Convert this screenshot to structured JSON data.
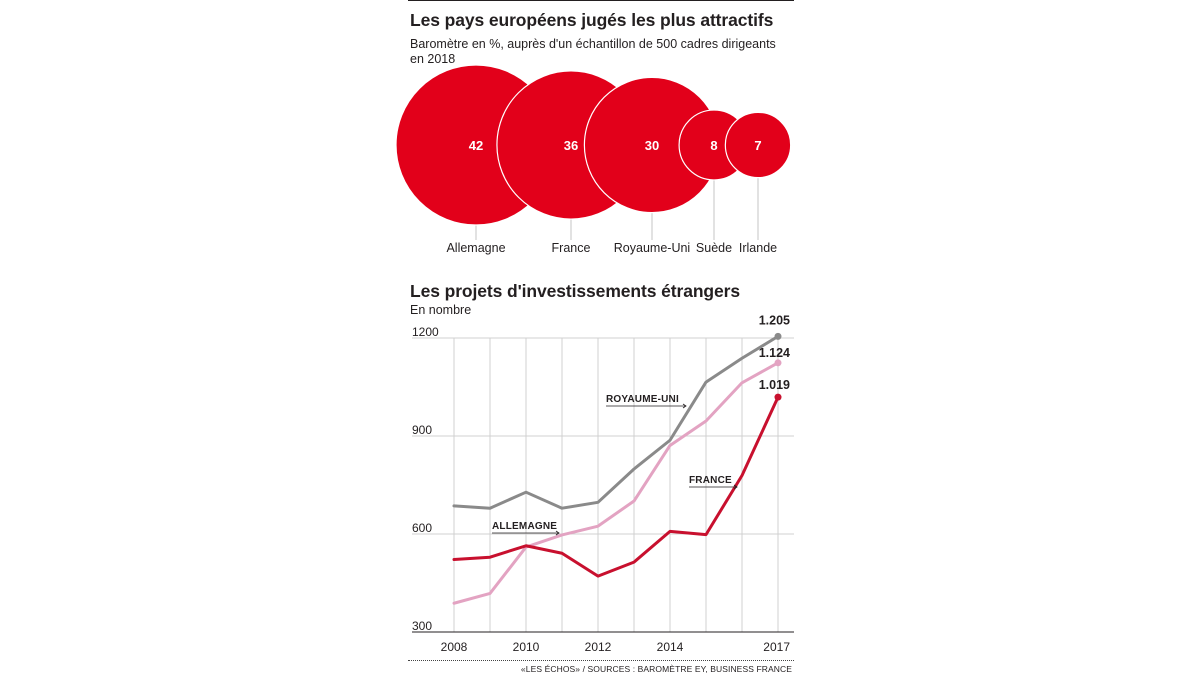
{
  "bubble_chart": {
    "title": "Les pays européens jugés les plus attractifs",
    "subtitle": "Baromètre en %, auprès d'un échantillon de 500 cadres dirigeants en 2018"
  },
  "line_chart": {
    "title": "Les projets d'investissements étrangers",
    "subtitle": "En nombre"
  },
  "source": "«LES ÉCHOS» / SOURCES : BAROMÈTRE EY, BUSINESS FRANCE",
  "colors": {
    "accent_red": "#e2001a",
    "dark_red": "#c8102e",
    "grey": "#8a8a8a",
    "pink": "#e3a3c2"
  },
  "chart_data": [
    {
      "type": "bubble",
      "categories": [
        "Allemagne",
        "France",
        "Royaume-Uni",
        "Suède",
        "Irlande"
      ],
      "values": [
        42,
        36,
        30,
        8,
        7
      ],
      "value_labels": [
        "42",
        "36",
        "30",
        "8",
        "7"
      ]
    },
    {
      "type": "line",
      "x": [
        2008,
        2009,
        2010,
        2011,
        2012,
        2013,
        2014,
        2015,
        2016,
        2017
      ],
      "x_tick_labels": [
        "2008",
        "2010",
        "2012",
        "2014",
        "2017"
      ],
      "x_tick_values": [
        2008,
        2010,
        2012,
        2014,
        2017
      ],
      "y_tick_labels": [
        "300",
        "600",
        "900",
        "1200"
      ],
      "y_tick_values": [
        300,
        600,
        900,
        1200
      ],
      "ylim": [
        300,
        1200
      ],
      "grid": true,
      "series": [
        {
          "name": "ROYAUME-UNI",
          "color": "#8a8a8a",
          "values": [
            686,
            679,
            728,
            679,
            697,
            799,
            887,
            1065,
            1138,
            1205
          ],
          "end_label": "1.205"
        },
        {
          "name": "ALLEMAGNE",
          "color": "#e3a3c2",
          "values": [
            388,
            418,
            560,
            597,
            624,
            701,
            871,
            946,
            1063,
            1124
          ],
          "end_label": "1.124"
        },
        {
          "name": "FRANCE",
          "color": "#c8102e",
          "values": [
            522,
            529,
            564,
            541,
            471,
            514,
            608,
            598,
            779,
            1019
          ],
          "end_label": "1.019"
        }
      ]
    }
  ]
}
